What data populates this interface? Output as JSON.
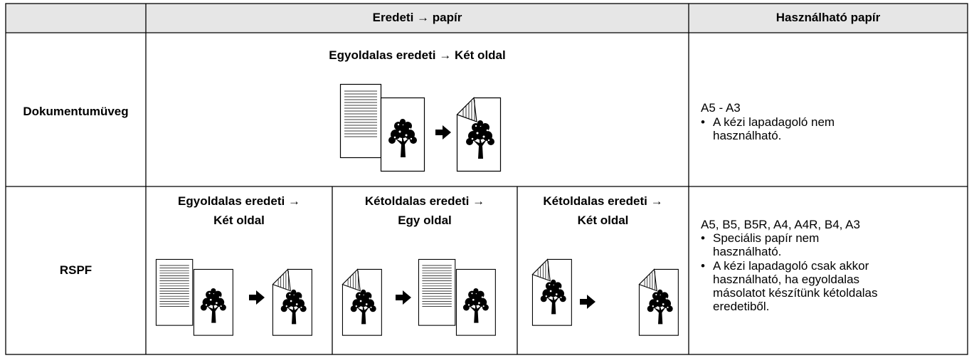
{
  "header": {
    "columns": [
      "Eredeti → papír",
      "Használható papír"
    ]
  },
  "rows": [
    {
      "label": "Dokumentumüveg",
      "modes": [
        {
          "lines": [
            "Egyoldalas eredeti → Két oldal"
          ]
        }
      ],
      "paper": {
        "sizes": "A5 - A3",
        "notes": [
          [
            "A kézi lapadagoló nem",
            "használható."
          ]
        ]
      }
    },
    {
      "label": "RSPF",
      "modes": [
        {
          "lines": [
            "Egyoldalas eredeti →",
            "Két oldal"
          ]
        },
        {
          "lines": [
            "Kétoldalas eredeti →",
            "Egy oldal"
          ]
        },
        {
          "lines": [
            "Kétoldalas eredeti →",
            "Két oldal"
          ]
        }
      ],
      "paper": {
        "sizes": "A5, B5, B5R, A4, A4R, B4, A3",
        "notes": [
          [
            "Speciális papír nem",
            "használható."
          ],
          [
            "A kézi lapadagoló csak akkor",
            "használható, ha egyoldalas",
            "másolatot készítünk kétoldalas",
            "eredetiből."
          ]
        ]
      }
    }
  ]
}
